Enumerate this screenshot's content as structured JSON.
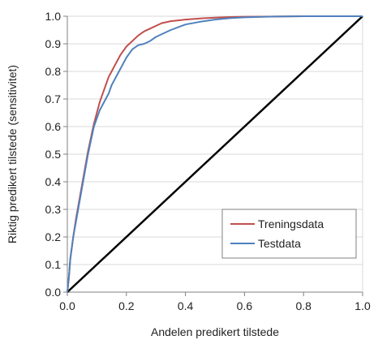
{
  "chart_data": {
    "type": "line",
    "title": "",
    "xlabel": "Andelen predikert tilstede",
    "ylabel": "Riktig predikert tilstede (sensitivitet)",
    "xlim": [
      0,
      1
    ],
    "ylim": [
      0,
      1
    ],
    "x_ticks": [
      "0.0",
      "0.2",
      "0.4",
      "0.6",
      "0.8",
      "1.0"
    ],
    "y_ticks": [
      "0.0",
      "0.1",
      "0.2",
      "0.3",
      "0.4",
      "0.5",
      "0.6",
      "0.7",
      "0.8",
      "0.9",
      "1.0"
    ],
    "grid": "horizontal",
    "legend_position": "bottom-right",
    "series": [
      {
        "name": "Treningsdata",
        "color": "#c0504d",
        "x": [
          0,
          0.005,
          0.01,
          0.02,
          0.03,
          0.04,
          0.05,
          0.06,
          0.07,
          0.08,
          0.09,
          0.1,
          0.11,
          0.12,
          0.13,
          0.14,
          0.15,
          0.16,
          0.17,
          0.18,
          0.19,
          0.2,
          0.22,
          0.24,
          0.26,
          0.28,
          0.3,
          0.32,
          0.35,
          0.4,
          0.45,
          0.5,
          0.55,
          0.6,
          0.7,
          0.8,
          0.9,
          1.0
        ],
        "y": [
          0,
          0.05,
          0.12,
          0.2,
          0.27,
          0.33,
          0.39,
          0.45,
          0.51,
          0.56,
          0.61,
          0.65,
          0.69,
          0.72,
          0.75,
          0.78,
          0.8,
          0.82,
          0.84,
          0.86,
          0.875,
          0.89,
          0.91,
          0.93,
          0.945,
          0.955,
          0.965,
          0.975,
          0.982,
          0.988,
          0.992,
          0.995,
          0.997,
          0.998,
          0.999,
          1.0,
          1.0,
          1.0
        ]
      },
      {
        "name": "Testdata",
        "color": "#4f81bd",
        "x": [
          0,
          0.005,
          0.01,
          0.02,
          0.03,
          0.04,
          0.05,
          0.06,
          0.07,
          0.08,
          0.09,
          0.1,
          0.11,
          0.12,
          0.13,
          0.14,
          0.15,
          0.16,
          0.17,
          0.18,
          0.19,
          0.2,
          0.22,
          0.24,
          0.26,
          0.28,
          0.3,
          0.32,
          0.35,
          0.4,
          0.45,
          0.5,
          0.55,
          0.6,
          0.7,
          0.8,
          0.9,
          1.0
        ],
        "y": [
          0,
          0.05,
          0.12,
          0.2,
          0.26,
          0.32,
          0.38,
          0.44,
          0.5,
          0.55,
          0.6,
          0.63,
          0.66,
          0.68,
          0.7,
          0.72,
          0.75,
          0.77,
          0.79,
          0.81,
          0.83,
          0.85,
          0.88,
          0.895,
          0.9,
          0.91,
          0.925,
          0.935,
          0.95,
          0.97,
          0.98,
          0.988,
          0.993,
          0.996,
          0.999,
          1.0,
          1.0,
          1.0
        ]
      },
      {
        "name": "",
        "color": "#000000",
        "x": [
          0,
          1
        ],
        "y": [
          0,
          1
        ]
      }
    ]
  }
}
